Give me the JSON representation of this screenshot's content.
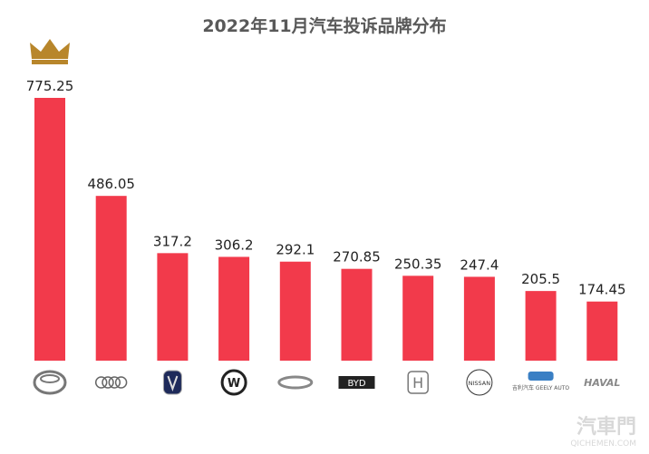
{
  "chart_data": {
    "type": "bar",
    "title": "2022年11月汽车投诉品牌分布",
    "categories": [
      "toyota-logo",
      "audi-logo",
      "changan-logo",
      "volkswagen-logo",
      "chery-logo",
      "byd-logo",
      "honda-logo",
      "nissan-logo",
      "geely-logo",
      "haval-logo"
    ],
    "values": [
      775.25,
      486.05,
      317.2,
      306.2,
      292.1,
      270.85,
      250.35,
      247.4,
      205.5,
      174.45
    ],
    "labels": [
      "775.25",
      "486.05",
      "317.2",
      "306.2",
      "292.1",
      "270.85",
      "250.35",
      "247.4",
      "205.5",
      "174.45"
    ],
    "ylim": [
      0,
      775.25
    ],
    "grid": false,
    "bar_color": "#F23A4B",
    "top_icon": "crown-icon",
    "logo_text": {
      "byd": "BYD",
      "nissan": "NISSAN",
      "geely": "吉利汽车 GEELY AUTO",
      "haval": "HAVAL"
    }
  },
  "watermark": {
    "cn": "汽車門",
    "en": "QICHEMEN.COM"
  }
}
